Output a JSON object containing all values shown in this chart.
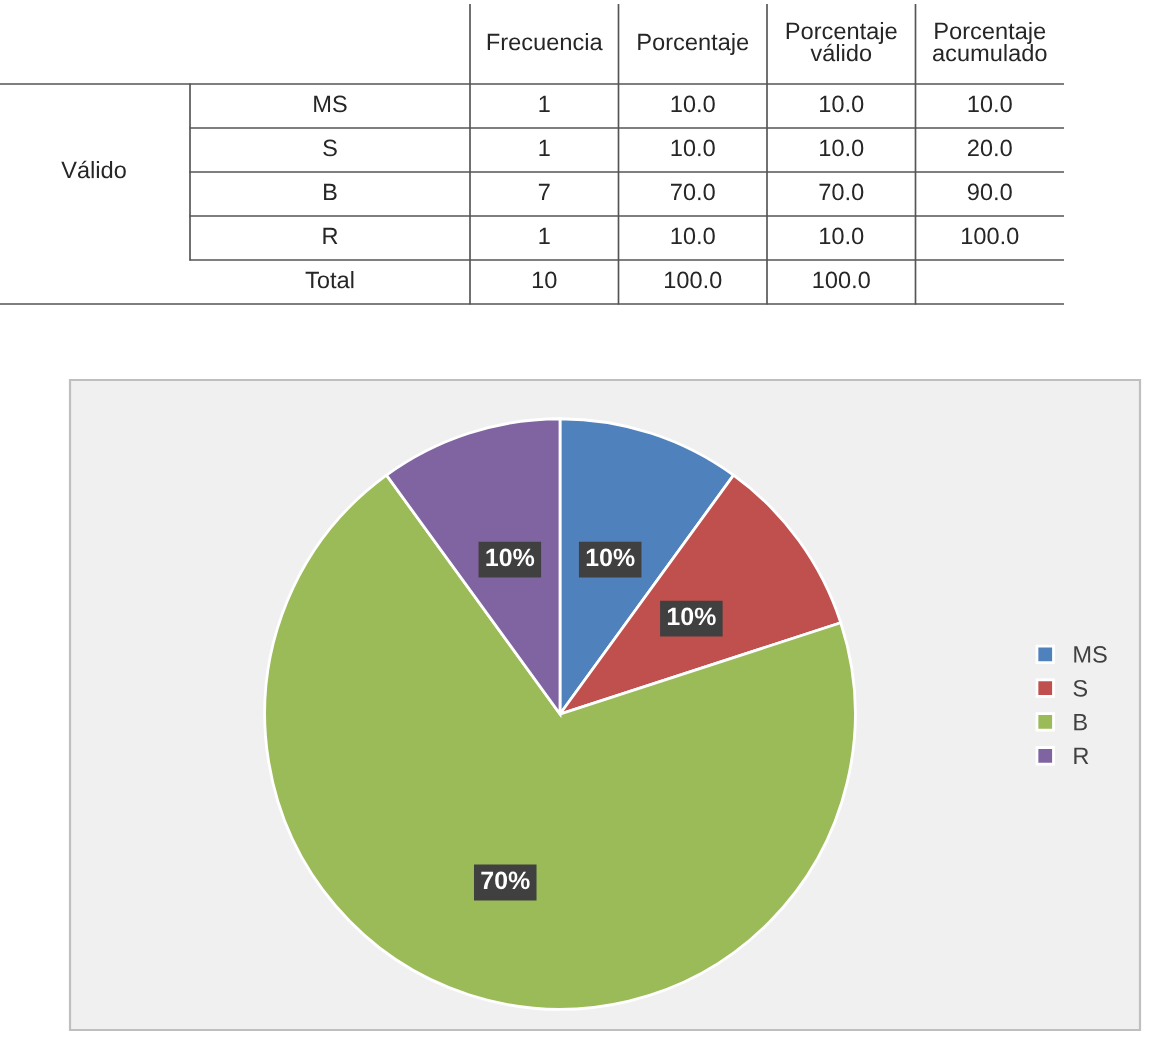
{
  "chart_data": [
    {
      "type": "other",
      "categories": [
        "Frecuencia",
        "Porcentaje",
        "Porcentaje válido",
        "Porcentaje acumulado"
      ],
      "y_categories": [
        "MS",
        "S",
        "B",
        "R",
        "Total"
      ],
      "cell_labels": [
        [
          "1",
          "10.0",
          "10.0",
          "10.0"
        ],
        [
          "1",
          "10.0",
          "10.0",
          "20.0"
        ],
        [
          "7",
          "70.0",
          "70.0",
          "90.0"
        ],
        [
          "1",
          "10.0",
          "10.0",
          "100.0"
        ],
        [
          "10",
          "100.0",
          "100.0",
          null
        ]
      ],
      "annotations": [
        "Válido"
      ]
    },
    {
      "type": "pie",
      "categories": [
        "MS",
        "S",
        "B",
        "R"
      ],
      "values": [
        10,
        10,
        70,
        10
      ],
      "colors": [
        "#4f81bd",
        "#c0504d",
        "#9bbb59",
        "#8064a2"
      ],
      "value_labels": [
        "10%",
        "10%",
        "70%",
        "10%"
      ],
      "legend": "right"
    }
  ]
}
